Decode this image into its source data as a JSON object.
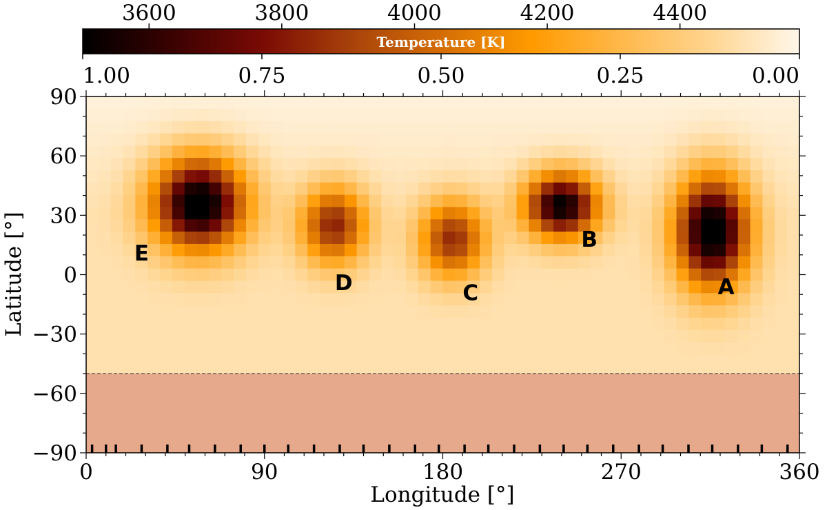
{
  "chart_data": {
    "type": "heatmap",
    "title": "",
    "xlabel": "Longitude [°]",
    "ylabel": "Latitude [°]",
    "xlim": [
      0,
      360
    ],
    "ylim": [
      -90,
      90
    ],
    "xticks": [
      "0",
      "90",
      "180",
      "270",
      "360"
    ],
    "yticks": [
      "90",
      "60",
      "30",
      "0",
      "−30",
      "−60",
      "−90"
    ],
    "colorbar": {
      "label": "Temperature [K]",
      "position": "top",
      "top_ticks": [
        "3600",
        "3800",
        "4000",
        "4200",
        "4400"
      ],
      "top_tick_values": [
        3600,
        3800,
        4000,
        4200,
        4400
      ],
      "temp_range": [
        3500,
        4580
      ],
      "bottom_ticks": [
        "1.00",
        "0.75",
        "0.50",
        "0.25",
        "0.00"
      ],
      "bottom_tick_values": [
        1.0,
        0.75,
        0.5,
        0.25,
        0.0
      ],
      "colors": [
        "#000000",
        "#3a0202",
        "#7a0a04",
        "#a8420a",
        "#d46d06",
        "#ff9a00",
        "#ffb84a",
        "#ffd590",
        "#fff7ea"
      ]
    },
    "background_value": 0.08,
    "polar_gradient": {
      "from_lat": 30,
      "to_lat": 90,
      "value_at_pole": 0.02
    },
    "spots": [
      {
        "label": "E",
        "lon": 57,
        "lat": 36,
        "rlon": 24,
        "rlat": 24,
        "peak": 1.0,
        "label_lon": 28,
        "label_lat": 11
      },
      {
        "label": "D",
        "lon": 125,
        "lat": 25,
        "rlon": 17,
        "rlat": 20,
        "peak": 0.62,
        "label_lon": 130,
        "label_lat": -4
      },
      {
        "label": "C",
        "lon": 185,
        "lat": 18,
        "rlon": 17,
        "rlat": 20,
        "peak": 0.6,
        "label_lon": 194,
        "label_lat": -9
      },
      {
        "label": "B",
        "lon": 240,
        "lat": 35,
        "rlon": 19,
        "rlat": 17,
        "peak": 0.93,
        "label_lon": 254,
        "label_lat": 18
      },
      {
        "label": "A",
        "lon": 316,
        "lat": 22,
        "rlon": 19,
        "rlat": 29,
        "peak": 1.0,
        "label_lon": 323,
        "label_lat": -6
      }
    ],
    "masked_region": {
      "lat_from": -90,
      "lat_to": -50,
      "color": "#e6a98c",
      "boundary_style": "dashed"
    },
    "bottom_markers_lon": [
      3,
      10,
      15,
      28,
      41,
      52,
      65,
      78,
      90,
      102,
      115,
      128,
      140,
      153,
      166,
      178,
      191,
      203,
      216,
      229,
      241,
      253,
      266,
      279,
      291,
      304,
      316,
      329,
      341,
      354
    ],
    "grid": false
  }
}
